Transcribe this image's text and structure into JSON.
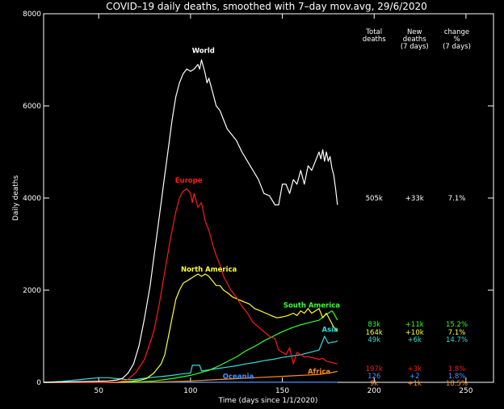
{
  "chart_data": {
    "type": "line",
    "title": "COVID–19 daily deaths, smoothed with 7–day mov.avg, 29/6/2020",
    "xlabel": "Time (days since 1/1/2020)",
    "ylabel": "Daily deaths",
    "xlim": [
      20,
      265
    ],
    "ylim": [
      0,
      8000
    ],
    "x_ticks": [
      50,
      100,
      150,
      200,
      250
    ],
    "y_ticks": [
      0,
      2000,
      4000,
      6000,
      8000
    ],
    "grid": false,
    "table_headers": [
      [
        "Total",
        "deaths"
      ],
      [
        "New",
        "deaths",
        "(7 days)"
      ],
      [
        "change",
        "%",
        "(7 days)"
      ]
    ],
    "series": [
      {
        "name": "World",
        "color": "#ffffff",
        "label_at": [
          107,
          7150
        ],
        "stats": [
          "505k",
          "+33k",
          "7.1%"
        ],
        "stats_y": 4000,
        "x": [
          20,
          40,
          55,
          60,
          63,
          66,
          69,
          72,
          75,
          78,
          80,
          82,
          84,
          86,
          88,
          90,
          92,
          94,
          96,
          98,
          100,
          102,
          104,
          105,
          106,
          107,
          108,
          109,
          110,
          112,
          114,
          116,
          118,
          120,
          122,
          125,
          128,
          131,
          134,
          137,
          140,
          143,
          146,
          148,
          150,
          152,
          154,
          156,
          158,
          160,
          162,
          164,
          166,
          168,
          170,
          171,
          172,
          173,
          174,
          175,
          176,
          177,
          178,
          179,
          180
        ],
        "values": [
          0,
          15,
          30,
          50,
          90,
          200,
          400,
          800,
          1400,
          2100,
          2700,
          3300,
          3900,
          4500,
          5100,
          5700,
          6200,
          6500,
          6700,
          6800,
          6750,
          6800,
          6900,
          6800,
          7000,
          6850,
          6700,
          6500,
          6600,
          6300,
          6000,
          5900,
          5700,
          5500,
          5400,
          5250,
          5000,
          4800,
          4600,
          4400,
          4100,
          4050,
          3850,
          3850,
          4300,
          4300,
          4100,
          4400,
          4300,
          4600,
          4300,
          4700,
          4600,
          4800,
          5000,
          4850,
          5050,
          4800,
          5000,
          4800,
          4900,
          4650,
          4500,
          4200,
          3850
        ]
      },
      {
        "name": "Europe",
        "color": "#ff1a1a",
        "label_at": [
          99,
          4330
        ],
        "stats": [
          "197k",
          "+3k",
          "1.8%"
        ],
        "stats_y": 300,
        "x": [
          20,
          50,
          60,
          65,
          70,
          75,
          80,
          83,
          86,
          89,
          92,
          94,
          96,
          98,
          100,
          101,
          102,
          104,
          106,
          108,
          110,
          112,
          114,
          116,
          118,
          120,
          122,
          125,
          128,
          131,
          134,
          137,
          140,
          143,
          146,
          148,
          150,
          152,
          154,
          156,
          158,
          160,
          162,
          164,
          166,
          168,
          170,
          172,
          174,
          176,
          178,
          180
        ],
        "values": [
          0,
          0,
          10,
          40,
          200,
          500,
          1100,
          1700,
          2400,
          3100,
          3700,
          4000,
          4150,
          4200,
          4100,
          3900,
          4100,
          3800,
          3900,
          3500,
          3300,
          3000,
          2750,
          2550,
          2300,
          2150,
          2000,
          1850,
          1650,
          1500,
          1300,
          1200,
          1100,
          1000,
          950,
          700,
          650,
          600,
          750,
          400,
          650,
          600,
          550,
          560,
          540,
          520,
          500,
          520,
          460,
          440,
          420,
          400
        ]
      },
      {
        "name": "North America",
        "color": "#ffff33",
        "label_at": [
          110,
          2400
        ],
        "stats": [
          "164k",
          "+10k",
          "7.1%"
        ],
        "stats_y": 1090,
        "x": [
          20,
          60,
          68,
          72,
          76,
          80,
          84,
          86,
          88,
          90,
          92,
          94,
          96,
          98,
          100,
          102,
          104,
          106,
          108,
          110,
          112,
          114,
          116,
          118,
          120,
          123,
          126,
          129,
          132,
          135,
          138,
          141,
          144,
          147,
          150,
          153,
          156,
          158,
          160,
          162,
          164,
          166,
          168,
          170,
          172,
          174,
          176,
          178,
          180
        ],
        "values": [
          0,
          0,
          20,
          40,
          80,
          200,
          400,
          600,
          1000,
          1400,
          1800,
          2000,
          2150,
          2200,
          2250,
          2300,
          2350,
          2300,
          2350,
          2300,
          2200,
          2100,
          2100,
          2000,
          1950,
          1850,
          1800,
          1750,
          1700,
          1600,
          1550,
          1500,
          1450,
          1400,
          1420,
          1450,
          1500,
          1450,
          1550,
          1500,
          1600,
          1500,
          1550,
          1600,
          1400,
          1500,
          1350,
          1200,
          1100
        ]
      },
      {
        "name": "South America",
        "color": "#33ff33",
        "label_at": [
          166,
          1620
        ],
        "stats": [
          "83k",
          "+11k",
          "15.2%"
        ],
        "stats_y": 1260,
        "x": [
          20,
          70,
          80,
          90,
          100,
          110,
          115,
          120,
          125,
          130,
          135,
          140,
          145,
          150,
          155,
          160,
          165,
          170,
          173,
          175,
          177,
          178,
          180
        ],
        "values": [
          0,
          5,
          30,
          80,
          150,
          260,
          350,
          450,
          550,
          680,
          780,
          900,
          1000,
          1100,
          1180,
          1250,
          1300,
          1350,
          1450,
          1500,
          1550,
          1500,
          1350
        ]
      },
      {
        "name": "Asia",
        "color": "#33dddd",
        "label_at": [
          176,
          1100
        ],
        "stats": [
          "49k",
          "+6k",
          "14.7%"
        ],
        "stats_y": 930,
        "x": [
          20,
          30,
          35,
          40,
          45,
          50,
          55,
          60,
          65,
          70,
          75,
          80,
          85,
          90,
          95,
          100,
          101,
          105,
          106,
          110,
          115,
          120,
          125,
          130,
          135,
          140,
          145,
          150,
          155,
          160,
          165,
          170,
          173,
          175,
          177,
          179,
          180
        ],
        "values": [
          0,
          20,
          40,
          60,
          80,
          100,
          100,
          80,
          60,
          60,
          90,
          110,
          130,
          150,
          180,
          200,
          370,
          370,
          250,
          270,
          300,
          330,
          360,
          400,
          430,
          470,
          500,
          540,
          570,
          600,
          650,
          700,
          1000,
          850,
          870,
          880,
          900
        ]
      },
      {
        "name": "Africa",
        "color": "#ff8c19",
        "label_at": [
          170,
          180
        ],
        "stats": [
          "9k",
          "+1k",
          "18.5%"
        ],
        "stats_y": -20,
        "x": [
          20,
          70,
          80,
          90,
          100,
          110,
          120,
          130,
          140,
          150,
          160,
          170,
          175,
          178,
          180
        ],
        "values": [
          0,
          0,
          5,
          15,
          30,
          50,
          70,
          90,
          110,
          130,
          150,
          170,
          200,
          220,
          240
        ]
      },
      {
        "name": "Oceania",
        "color": "#4a90ff",
        "label_at": [
          126,
          80
        ],
        "stats": [
          "126",
          "+2",
          "1.8%"
        ],
        "stats_y": 140,
        "x": [
          20,
          70,
          80,
          90,
          100,
          110,
          120,
          140,
          160,
          180
        ],
        "values": [
          0,
          0,
          0,
          2,
          5,
          3,
          2,
          1,
          1,
          1
        ]
      }
    ]
  }
}
